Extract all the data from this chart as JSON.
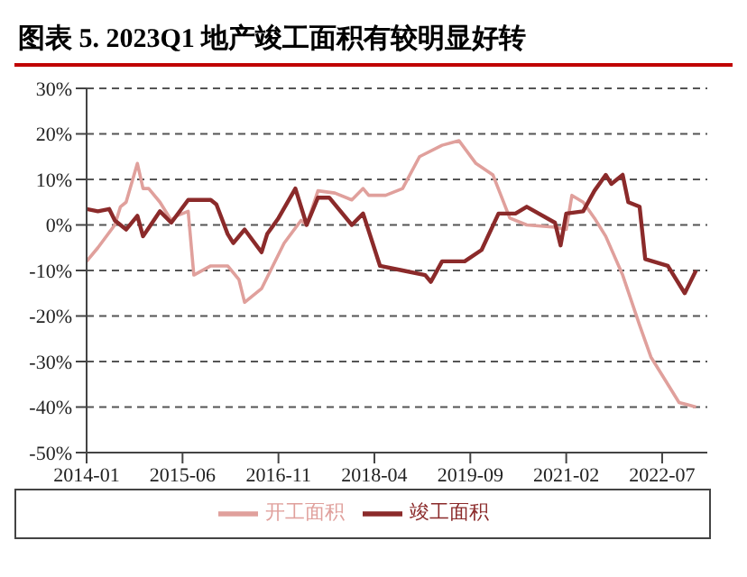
{
  "chart_data": {
    "type": "line",
    "title": "图表 5. 2023Q1 地产竣工面积有较明显好转",
    "xlim": [
      "2014-01",
      "2023-03"
    ],
    "xticks": [
      "2014-01",
      "2015-06",
      "2016-11",
      "2018-04",
      "2019-09",
      "2021-02",
      "2022-07"
    ],
    "ylim": [
      -50,
      30
    ],
    "yticks": [
      {
        "value": -50,
        "label": "-50%"
      },
      {
        "value": -40,
        "label": "-40%"
      },
      {
        "value": -30,
        "label": "-30%"
      },
      {
        "value": -20,
        "label": "-20%"
      },
      {
        "value": -10,
        "label": "-10%"
      },
      {
        "value": 0,
        "label": "0%"
      },
      {
        "value": 10,
        "label": "10%"
      },
      {
        "value": 20,
        "label": "20%"
      },
      {
        "value": 30,
        "label": "30%"
      }
    ],
    "grid": "y",
    "legend": "bottom",
    "marker": "none",
    "line_style": "solid",
    "series": [
      {
        "name": "开工面积",
        "color": "#e0a09c",
        "x": [
          "2014-01",
          "2014-03",
          "2014-06",
          "2014-07",
          "2014-08",
          "2014-10",
          "2014-11",
          "2014-12",
          "2015-02",
          "2015-04",
          "2015-05",
          "2015-07",
          "2015-08",
          "2015-11",
          "2016-02",
          "2016-04",
          "2016-05",
          "2016-08",
          "2016-10",
          "2016-12",
          "2017-03",
          "2017-04",
          "2017-06",
          "2017-09",
          "2017-12",
          "2018-02",
          "2018-03",
          "2018-06",
          "2018-09",
          "2018-12",
          "2019-04",
          "2019-07",
          "2019-10",
          "2020-01",
          "2020-04",
          "2020-07",
          "2020-12",
          "2021-02",
          "2021-03",
          "2021-05",
          "2021-07",
          "2021-09",
          "2021-12",
          "2022-03",
          "2022-05",
          "2022-08",
          "2022-10",
          "2023-01"
        ],
        "values": [
          -8,
          -5,
          0,
          4,
          5,
          13.5,
          8,
          8,
          5,
          1,
          2,
          3,
          -11,
          -9,
          -9,
          -12,
          -17,
          -14,
          -9,
          -4,
          1,
          0,
          7.5,
          7,
          5.5,
          8,
          6.5,
          6.5,
          8,
          15,
          17.5,
          18.5,
          13.5,
          11,
          1.5,
          0,
          -0.5,
          -1,
          6.5,
          5,
          1.5,
          -2.5,
          -11,
          -22,
          -29,
          -35,
          -39,
          -40
        ]
      },
      {
        "name": "竣工面积",
        "color": "#8b2a2a",
        "x": [
          "2014-01",
          "2014-03",
          "2014-05",
          "2014-06",
          "2014-08",
          "2014-10",
          "2014-11",
          "2015-02",
          "2015-04",
          "2015-07",
          "2015-11",
          "2015-12",
          "2016-02",
          "2016-03",
          "2016-05",
          "2016-08",
          "2016-09",
          "2016-11",
          "2017-02",
          "2017-04",
          "2017-06",
          "2017-08",
          "2017-12",
          "2018-02",
          "2018-05",
          "2018-09",
          "2019-01",
          "2019-02",
          "2019-04",
          "2019-08",
          "2019-11",
          "2020-02",
          "2020-05",
          "2020-07",
          "2020-12",
          "2021-01",
          "2021-02",
          "2021-05",
          "2021-07",
          "2021-09",
          "2021-10",
          "2021-12",
          "2022-01",
          "2022-03",
          "2022-04",
          "2022-08",
          "2022-11",
          "2023-01"
        ],
        "values": [
          3.5,
          3,
          3.5,
          1,
          -1,
          2,
          -2.5,
          3,
          0.5,
          5.5,
          5.5,
          4.5,
          -2,
          -4,
          -1,
          -6,
          -2,
          1.5,
          8,
          0,
          6,
          6,
          0,
          2.5,
          -9,
          -10,
          -11,
          -12.5,
          -8,
          -8,
          -5.5,
          2.5,
          2.5,
          4,
          0.5,
          -4.5,
          2.5,
          3,
          7.5,
          11,
          9,
          11,
          5,
          4,
          -7.5,
          -9,
          -15,
          -10
        ]
      }
    ]
  }
}
